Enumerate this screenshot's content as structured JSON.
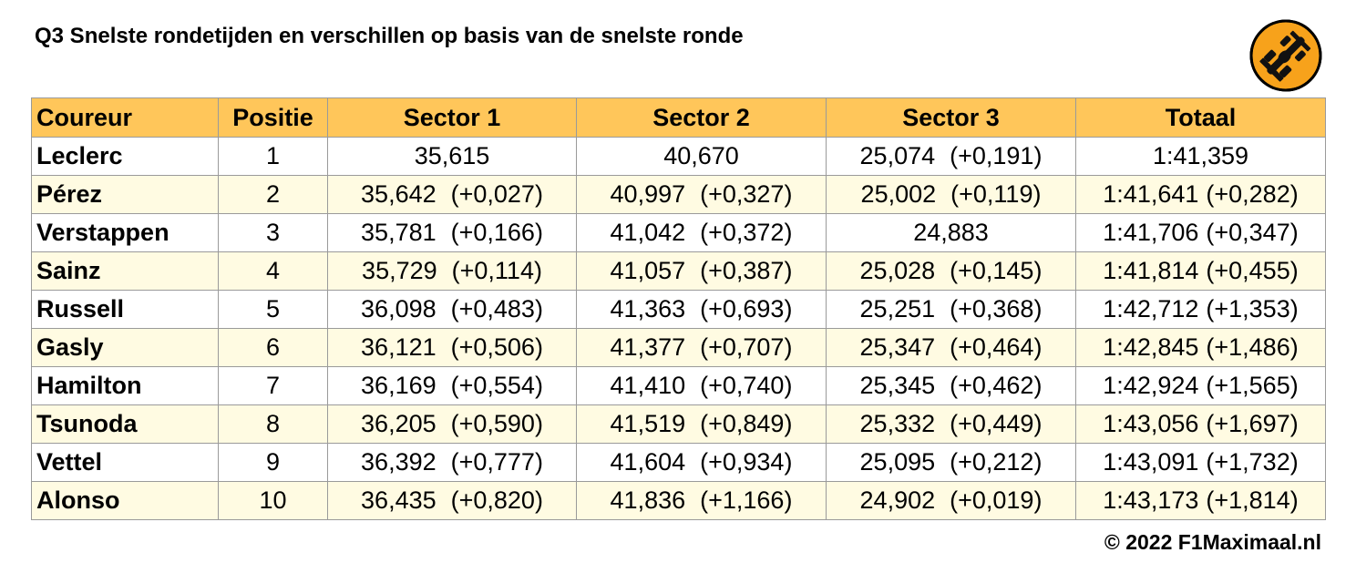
{
  "title": "Q3 Snelste rondetijden en verschillen op basis van de snelste ronde",
  "footer": "© 2022 F1Maximaal.nl",
  "colors": {
    "header": "#ffc65a",
    "alt_row": "#fffbe2",
    "logo": "#f7a21b"
  },
  "logo_icon": "racing-car-icon",
  "chart_data": {
    "type": "table",
    "columns": [
      "Coureur",
      "Positie",
      "Sector 1",
      "Sector 2",
      "Sector 3",
      "Totaal"
    ],
    "rows": [
      {
        "driver": "Leclerc",
        "position": "1",
        "s1": "35,615",
        "s1_diff": "",
        "s2": "40,670",
        "s2_diff": "",
        "s3": "25,074",
        "s3_diff": "(+0,191)",
        "total": "1:41,359",
        "total_diff": ""
      },
      {
        "driver": "Pérez",
        "position": "2",
        "s1": "35,642",
        "s1_diff": "(+0,027)",
        "s2": "40,997",
        "s2_diff": "(+0,327)",
        "s3": "25,002",
        "s3_diff": "(+0,119)",
        "total": "1:41,641",
        "total_diff": "(+0,282)"
      },
      {
        "driver": "Verstappen",
        "position": "3",
        "s1": "35,781",
        "s1_diff": "(+0,166)",
        "s2": "41,042",
        "s2_diff": "(+0,372)",
        "s3": "24,883",
        "s3_diff": "",
        "total": "1:41,706",
        "total_diff": "(+0,347)"
      },
      {
        "driver": "Sainz",
        "position": "4",
        "s1": "35,729",
        "s1_diff": "(+0,114)",
        "s2": "41,057",
        "s2_diff": "(+0,387)",
        "s3": "25,028",
        "s3_diff": "(+0,145)",
        "total": "1:41,814",
        "total_diff": "(+0,455)"
      },
      {
        "driver": "Russell",
        "position": "5",
        "s1": "36,098",
        "s1_diff": "(+0,483)",
        "s2": "41,363",
        "s2_diff": "(+0,693)",
        "s3": "25,251",
        "s3_diff": "(+0,368)",
        "total": "1:42,712",
        "total_diff": "(+1,353)"
      },
      {
        "driver": "Gasly",
        "position": "6",
        "s1": "36,121",
        "s1_diff": "(+0,506)",
        "s2": "41,377",
        "s2_diff": "(+0,707)",
        "s3": "25,347",
        "s3_diff": "(+0,464)",
        "total": "1:42,845",
        "total_diff": "(+1,486)"
      },
      {
        "driver": "Hamilton",
        "position": "7",
        "s1": "36,169",
        "s1_diff": "(+0,554)",
        "s2": "41,410",
        "s2_diff": "(+0,740)",
        "s3": "25,345",
        "s3_diff": "(+0,462)",
        "total": "1:42,924",
        "total_diff": "(+1,565)"
      },
      {
        "driver": "Tsunoda",
        "position": "8",
        "s1": "36,205",
        "s1_diff": "(+0,590)",
        "s2": "41,519",
        "s2_diff": "(+0,849)",
        "s3": "25,332",
        "s3_diff": "(+0,449)",
        "total": "1:43,056",
        "total_diff": "(+1,697)"
      },
      {
        "driver": "Vettel",
        "position": "9",
        "s1": "36,392",
        "s1_diff": "(+0,777)",
        "s2": "41,604",
        "s2_diff": "(+0,934)",
        "s3": "25,095",
        "s3_diff": "(+0,212)",
        "total": "1:43,091",
        "total_diff": "(+1,732)"
      },
      {
        "driver": "Alonso",
        "position": "10",
        "s1": "36,435",
        "s1_diff": "(+0,820)",
        "s2": "41,836",
        "s2_diff": "(+1,166)",
        "s3": "24,902",
        "s3_diff": "(+0,019)",
        "total": "1:43,173",
        "total_diff": "(+1,814)"
      }
    ]
  }
}
